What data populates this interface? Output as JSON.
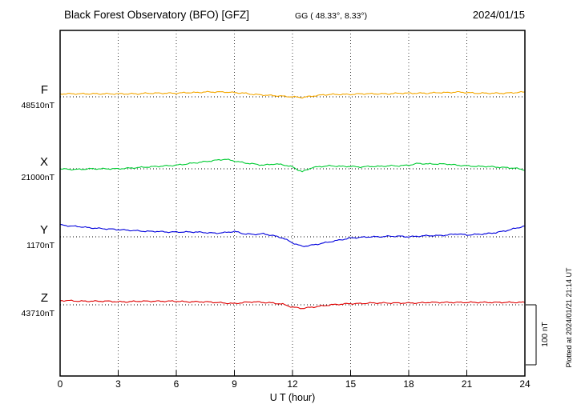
{
  "header": {
    "title": "Black Forest Observatory (BFO)  [GFZ]",
    "subtitle": "GG ( 48.33°,   8.33°)",
    "date": "2024/01/15"
  },
  "footer": {
    "xlabel": "U T (hour)"
  },
  "side": {
    "scale_label": "100 nT",
    "plotted_at": "Plotted at 2024/01/21 21:14 UT"
  },
  "chart_data": {
    "type": "line",
    "title": "Black Forest Observatory (BFO) magnetogram 2024/01/15",
    "xlabel": "U T (hour)",
    "ylabel": "",
    "x_range": [
      0,
      24
    ],
    "x_ticks": [
      0,
      3,
      6,
      9,
      12,
      15,
      18,
      21,
      24
    ],
    "grid": "dotted-vertical-at-3h",
    "scale_bar_nT": 100,
    "noise_nT": 1.2,
    "series": [
      {
        "name": "F",
        "baseline_label": "48510nT",
        "baseline_nT": 48510,
        "color": "#f5a800",
        "x": [
          0,
          0.5,
          1,
          1.5,
          2,
          2.5,
          3,
          3.5,
          4,
          4.5,
          5,
          5.5,
          6,
          6.5,
          7,
          7.5,
          8,
          8.5,
          9,
          9.5,
          10,
          10.5,
          11,
          11.5,
          12,
          12.5,
          13,
          13.5,
          14,
          14.5,
          15,
          15.5,
          16,
          16.5,
          17,
          17.5,
          18,
          18.5,
          19,
          19.5,
          20,
          20.5,
          21,
          21.5,
          22,
          22.5,
          23,
          23.5,
          24
        ],
        "offsets_nT": [
          5,
          5,
          5,
          5,
          5,
          5,
          5,
          5,
          5,
          6,
          6,
          6,
          6,
          7,
          7,
          8,
          8,
          8,
          7,
          6,
          4,
          3,
          2,
          1,
          0,
          -1,
          1,
          3,
          4,
          4,
          4,
          5,
          5,
          5,
          5,
          6,
          6,
          6,
          6,
          7,
          7,
          8,
          7,
          6,
          6,
          6,
          6,
          7,
          8
        ]
      },
      {
        "name": "X",
        "baseline_label": "21000nT",
        "baseline_nT": 21000,
        "color": "#00cc33",
        "x": [
          0,
          0.5,
          1,
          1.5,
          2,
          2.5,
          3,
          3.5,
          4,
          4.5,
          5,
          5.5,
          6,
          6.5,
          7,
          7.5,
          8,
          8.5,
          9,
          9.5,
          10,
          10.5,
          11,
          11.5,
          12,
          12.5,
          13,
          13.5,
          14,
          14.5,
          15,
          15.5,
          16,
          16.5,
          17,
          17.5,
          18,
          18.5,
          19,
          19.5,
          20,
          20.5,
          21,
          21.5,
          22,
          22.5,
          23,
          23.5,
          24
        ],
        "offsets_nT": [
          0,
          -1,
          -1,
          0,
          0,
          0,
          0,
          1,
          2,
          3,
          4,
          5,
          6,
          8,
          10,
          12,
          14,
          16,
          13,
          10,
          8,
          6,
          8,
          7,
          3,
          -5,
          2,
          4,
          5,
          4,
          4,
          3,
          4,
          4,
          5,
          5,
          6,
          9,
          8,
          8,
          8,
          6,
          5,
          4,
          4,
          3,
          2,
          1,
          -2
        ]
      },
      {
        "name": "Y",
        "baseline_label": "1170nT",
        "baseline_nT": 1170,
        "color": "#0000dd",
        "x": [
          0,
          0.5,
          1,
          1.5,
          2,
          2.5,
          3,
          3.5,
          4,
          4.5,
          5,
          5.5,
          6,
          6.5,
          7,
          7.5,
          8,
          8.5,
          9,
          9.5,
          10,
          10.5,
          11,
          11.5,
          12,
          12.5,
          13,
          13.5,
          14,
          14.5,
          15,
          15.5,
          16,
          16.5,
          17,
          17.5,
          18,
          18.5,
          19,
          19.5,
          20,
          20.5,
          21,
          21.5,
          22,
          22.5,
          23,
          23.5,
          24
        ],
        "offsets_nT": [
          20,
          18,
          17,
          15,
          14,
          13,
          12,
          11,
          10,
          9,
          9,
          8,
          8,
          8,
          8,
          7,
          6,
          7,
          9,
          5,
          4,
          5,
          2,
          -2,
          -10,
          -16,
          -14,
          -11,
          -8,
          -5,
          -2,
          -1,
          0,
          0,
          1,
          1,
          0,
          1,
          2,
          2,
          3,
          5,
          3,
          4,
          5,
          7,
          10,
          14,
          18
        ]
      },
      {
        "name": "Z",
        "baseline_label": "43710nT",
        "baseline_nT": 43710,
        "color": "#e00000",
        "x": [
          0,
          0.5,
          1,
          1.5,
          2,
          2.5,
          3,
          3.5,
          4,
          4.5,
          5,
          5.5,
          6,
          6.5,
          7,
          7.5,
          8,
          8.5,
          9,
          9.5,
          10,
          10.5,
          11,
          11.5,
          12,
          12.5,
          13,
          13.5,
          14,
          14.5,
          15,
          15.5,
          16,
          16.5,
          17,
          17.5,
          18,
          18.5,
          19,
          19.5,
          20,
          20.5,
          21,
          21.5,
          22,
          22.5,
          23,
          23.5,
          24
        ],
        "offsets_nT": [
          7,
          7,
          6,
          6,
          6,
          6,
          5,
          5,
          6,
          6,
          6,
          6,
          6,
          5,
          5,
          5,
          4,
          3,
          2,
          4,
          5,
          4,
          3,
          1,
          -4,
          -6,
          -4,
          -2,
          0,
          1,
          2,
          2,
          3,
          3,
          3,
          3,
          3,
          3,
          4,
          4,
          4,
          4,
          4,
          4,
          4,
          4,
          4,
          4,
          4
        ]
      }
    ]
  }
}
